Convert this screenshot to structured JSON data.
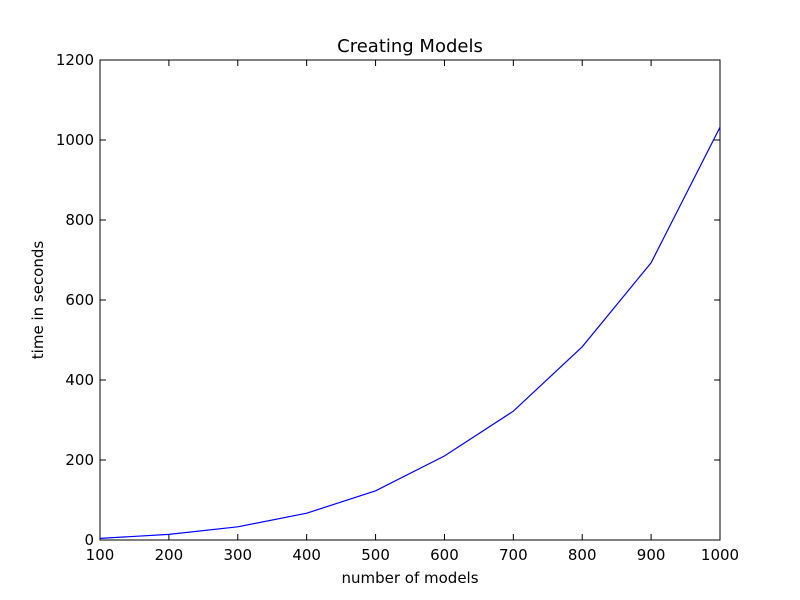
{
  "chart_data": {
    "type": "line",
    "title": "Creating Models",
    "xlabel": "number of models",
    "ylabel": "time in seconds",
    "xlim": [
      100,
      1000
    ],
    "ylim": [
      0,
      1200
    ],
    "xticks": [
      100,
      200,
      300,
      400,
      500,
      600,
      700,
      800,
      900,
      1000
    ],
    "yticks": [
      0,
      200,
      400,
      600,
      800,
      1000,
      1200
    ],
    "grid": false,
    "series": [
      {
        "color": "#0000ff",
        "x": [
          100,
          200,
          300,
          400,
          500,
          600,
          700,
          800,
          900,
          1000
        ],
        "y": [
          4,
          14,
          33,
          67,
          123,
          210,
          322,
          483,
          693,
          1032
        ]
      }
    ]
  }
}
